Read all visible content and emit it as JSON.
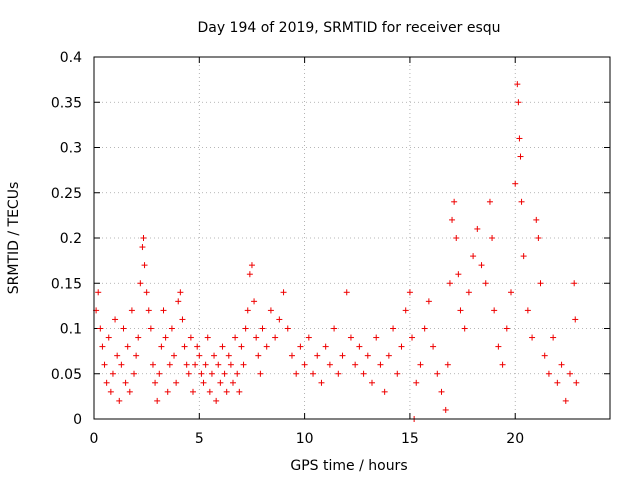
{
  "chart_data": {
    "type": "scatter",
    "title": "Day 194 of 2019, SRMTID for receiver esqu",
    "xlabel": "GPS time / hours",
    "ylabel": "SRMTID / TECUs",
    "xlim": [
      0,
      24.5
    ],
    "ylim": [
      0,
      0.4
    ],
    "xticks": [
      0,
      5,
      10,
      15,
      20
    ],
    "xtick_labels": [
      "0",
      "5",
      "10",
      "15",
      "20"
    ],
    "yticks": [
      0,
      0.05,
      0.1,
      0.15,
      0.2,
      0.25,
      0.3,
      0.35,
      0.4
    ],
    "ytick_labels": [
      "0",
      "0.05",
      "0.1",
      "0.15",
      "0.2",
      "0.25",
      "0.3",
      "0.35",
      "0.4"
    ],
    "grid": true,
    "marker": "plus",
    "marker_color": "#ee0000",
    "series": [
      {
        "name": "SRMTID",
        "points": [
          [
            0.1,
            0.12
          ],
          [
            0.2,
            0.14
          ],
          [
            0.3,
            0.1
          ],
          [
            0.4,
            0.08
          ],
          [
            0.5,
            0.06
          ],
          [
            0.6,
            0.04
          ],
          [
            0.7,
            0.09
          ],
          [
            0.8,
            0.03
          ],
          [
            0.9,
            0.05
          ],
          [
            1.0,
            0.11
          ],
          [
            1.1,
            0.07
          ],
          [
            1.2,
            0.02
          ],
          [
            1.3,
            0.06
          ],
          [
            1.4,
            0.1
          ],
          [
            1.5,
            0.04
          ],
          [
            1.6,
            0.08
          ],
          [
            1.7,
            0.03
          ],
          [
            1.8,
            0.12
          ],
          [
            1.9,
            0.05
          ],
          [
            2.0,
            0.07
          ],
          [
            2.1,
            0.09
          ],
          [
            2.2,
            0.15
          ],
          [
            2.3,
            0.19
          ],
          [
            2.35,
            0.2
          ],
          [
            2.4,
            0.17
          ],
          [
            2.5,
            0.14
          ],
          [
            2.6,
            0.12
          ],
          [
            2.7,
            0.1
          ],
          [
            2.8,
            0.06
          ],
          [
            2.9,
            0.04
          ],
          [
            3.0,
            0.02
          ],
          [
            3.1,
            0.05
          ],
          [
            3.2,
            0.08
          ],
          [
            3.3,
            0.12
          ],
          [
            3.4,
            0.09
          ],
          [
            3.5,
            0.03
          ],
          [
            3.6,
            0.06
          ],
          [
            3.7,
            0.1
          ],
          [
            3.8,
            0.07
          ],
          [
            3.9,
            0.04
          ],
          [
            4.0,
            0.13
          ],
          [
            4.1,
            0.14
          ],
          [
            4.2,
            0.11
          ],
          [
            4.3,
            0.08
          ],
          [
            4.4,
            0.06
          ],
          [
            4.5,
            0.05
          ],
          [
            4.6,
            0.09
          ],
          [
            4.7,
            0.03
          ],
          [
            4.8,
            0.06
          ],
          [
            4.9,
            0.08
          ],
          [
            5.0,
            0.07
          ],
          [
            5.1,
            0.05
          ],
          [
            5.2,
            0.04
          ],
          [
            5.3,
            0.06
          ],
          [
            5.4,
            0.09
          ],
          [
            5.5,
            0.03
          ],
          [
            5.6,
            0.05
          ],
          [
            5.7,
            0.07
          ],
          [
            5.8,
            0.02
          ],
          [
            5.9,
            0.06
          ],
          [
            6.0,
            0.04
          ],
          [
            6.1,
            0.08
          ],
          [
            6.2,
            0.05
          ],
          [
            6.3,
            0.03
          ],
          [
            6.4,
            0.07
          ],
          [
            6.5,
            0.06
          ],
          [
            6.6,
            0.04
          ],
          [
            6.7,
            0.09
          ],
          [
            6.8,
            0.05
          ],
          [
            6.9,
            0.03
          ],
          [
            7.0,
            0.08
          ],
          [
            7.1,
            0.06
          ],
          [
            7.2,
            0.1
          ],
          [
            7.3,
            0.12
          ],
          [
            7.4,
            0.16
          ],
          [
            7.5,
            0.17
          ],
          [
            7.6,
            0.13
          ],
          [
            7.7,
            0.09
          ],
          [
            7.8,
            0.07
          ],
          [
            7.9,
            0.05
          ],
          [
            8.0,
            0.1
          ],
          [
            8.2,
            0.08
          ],
          [
            8.4,
            0.12
          ],
          [
            8.6,
            0.09
          ],
          [
            8.8,
            0.11
          ],
          [
            9.0,
            0.14
          ],
          [
            9.2,
            0.1
          ],
          [
            9.4,
            0.07
          ],
          [
            9.6,
            0.05
          ],
          [
            9.8,
            0.08
          ],
          [
            10.0,
            0.06
          ],
          [
            10.2,
            0.09
          ],
          [
            10.4,
            0.05
          ],
          [
            10.6,
            0.07
          ],
          [
            10.8,
            0.04
          ],
          [
            11.0,
            0.08
          ],
          [
            11.2,
            0.06
          ],
          [
            11.4,
            0.1
          ],
          [
            11.6,
            0.05
          ],
          [
            11.8,
            0.07
          ],
          [
            12.0,
            0.14
          ],
          [
            12.2,
            0.09
          ],
          [
            12.4,
            0.06
          ],
          [
            12.6,
            0.08
          ],
          [
            12.8,
            0.05
          ],
          [
            13.0,
            0.07
          ],
          [
            13.2,
            0.04
          ],
          [
            13.4,
            0.09
          ],
          [
            13.6,
            0.06
          ],
          [
            13.8,
            0.03
          ],
          [
            14.0,
            0.07
          ],
          [
            14.2,
            0.1
          ],
          [
            14.4,
            0.05
          ],
          [
            14.6,
            0.08
          ],
          [
            14.8,
            0.12
          ],
          [
            15.0,
            0.14
          ],
          [
            15.1,
            0.09
          ],
          [
            15.2,
            0.0
          ],
          [
            15.3,
            0.04
          ],
          [
            15.5,
            0.06
          ],
          [
            15.7,
            0.1
          ],
          [
            15.9,
            0.13
          ],
          [
            16.1,
            0.08
          ],
          [
            16.3,
            0.05
          ],
          [
            16.5,
            0.03
          ],
          [
            16.7,
            0.01
          ],
          [
            16.8,
            0.06
          ],
          [
            16.9,
            0.15
          ],
          [
            17.0,
            0.22
          ],
          [
            17.1,
            0.24
          ],
          [
            17.2,
            0.2
          ],
          [
            17.3,
            0.16
          ],
          [
            17.4,
            0.12
          ],
          [
            17.6,
            0.1
          ],
          [
            17.8,
            0.14
          ],
          [
            18.0,
            0.18
          ],
          [
            18.2,
            0.21
          ],
          [
            18.4,
            0.17
          ],
          [
            18.6,
            0.15
          ],
          [
            18.8,
            0.24
          ],
          [
            18.9,
            0.2
          ],
          [
            19.0,
            0.12
          ],
          [
            19.2,
            0.08
          ],
          [
            19.4,
            0.06
          ],
          [
            19.6,
            0.1
          ],
          [
            19.8,
            0.14
          ],
          [
            20.0,
            0.26
          ],
          [
            20.1,
            0.37
          ],
          [
            20.15,
            0.35
          ],
          [
            20.2,
            0.31
          ],
          [
            20.25,
            0.29
          ],
          [
            20.3,
            0.24
          ],
          [
            20.4,
            0.18
          ],
          [
            20.6,
            0.12
          ],
          [
            20.8,
            0.09
          ],
          [
            21.0,
            0.22
          ],
          [
            21.1,
            0.2
          ],
          [
            21.2,
            0.15
          ],
          [
            21.4,
            0.07
          ],
          [
            21.6,
            0.05
          ],
          [
            21.8,
            0.09
          ],
          [
            22.0,
            0.04
          ],
          [
            22.2,
            0.06
          ],
          [
            22.4,
            0.02
          ],
          [
            22.6,
            0.05
          ],
          [
            22.8,
            0.15
          ],
          [
            22.85,
            0.11
          ],
          [
            22.9,
            0.04
          ]
        ]
      }
    ]
  }
}
